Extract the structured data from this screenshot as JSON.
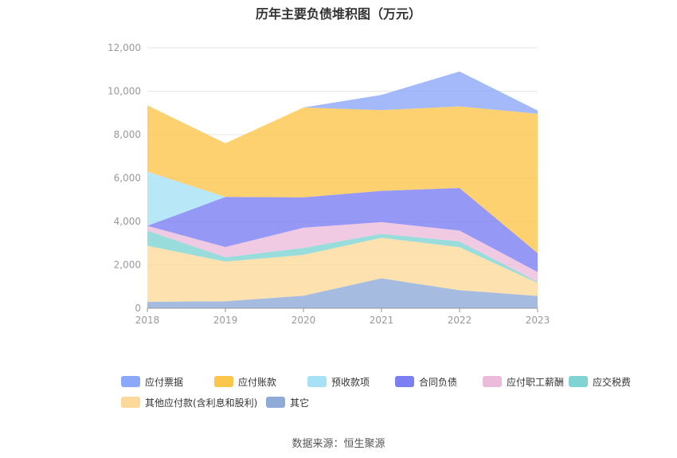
{
  "chart_data": {
    "type": "area",
    "stacked": true,
    "title": "历年主要负债堆积图（万元）",
    "x": [
      "2018",
      "2019",
      "2020",
      "2021",
      "2022",
      "2023"
    ],
    "ylim": [
      0,
      12000
    ],
    "yticks": [
      0,
      2000,
      4000,
      6000,
      8000,
      10000,
      12000
    ],
    "ytick_labels": [
      "0",
      "2,000",
      "4,000",
      "6,000",
      "8,000",
      "10,000",
      "12,000"
    ],
    "grid": true,
    "legend_position": "bottom",
    "series": [
      {
        "name": "其它",
        "color": "#8fabd8",
        "values": [
          300,
          320,
          580,
          1380,
          830,
          570
        ]
      },
      {
        "name": "其他应付款(含利息和股利)",
        "color": "#fcd99a",
        "values": [
          2580,
          1830,
          1880,
          1870,
          1980,
          600
        ]
      },
      {
        "name": "应交税费",
        "color": "#7fd3d3",
        "values": [
          700,
          200,
          320,
          180,
          270,
          50
        ]
      },
      {
        "name": "应付职工薪酬",
        "color": "#ecbbdc",
        "values": [
          220,
          470,
          930,
          540,
          500,
          450
        ]
      },
      {
        "name": "合同负债",
        "color": "#7b7ff2",
        "values": [
          0,
          2310,
          1400,
          1440,
          1960,
          870
        ]
      },
      {
        "name": "预收款项",
        "color": "#a6e1f6",
        "values": [
          2500,
          0,
          0,
          0,
          0,
          0
        ]
      },
      {
        "name": "应付账款",
        "color": "#fcc54c",
        "values": [
          3050,
          2470,
          4140,
          3720,
          3760,
          6420
        ]
      },
      {
        "name": "应付票据",
        "color": "#8ca8f8",
        "values": [
          0,
          0,
          0,
          700,
          1610,
          150
        ]
      }
    ],
    "legend_order": [
      "应付票据",
      "应付账款",
      "预收款项",
      "合同负债",
      "应付职工薪酬",
      "应交税费",
      "其他应付款(含利息和股利)",
      "其它"
    ]
  },
  "source_text": "数据来源：恒生聚源"
}
